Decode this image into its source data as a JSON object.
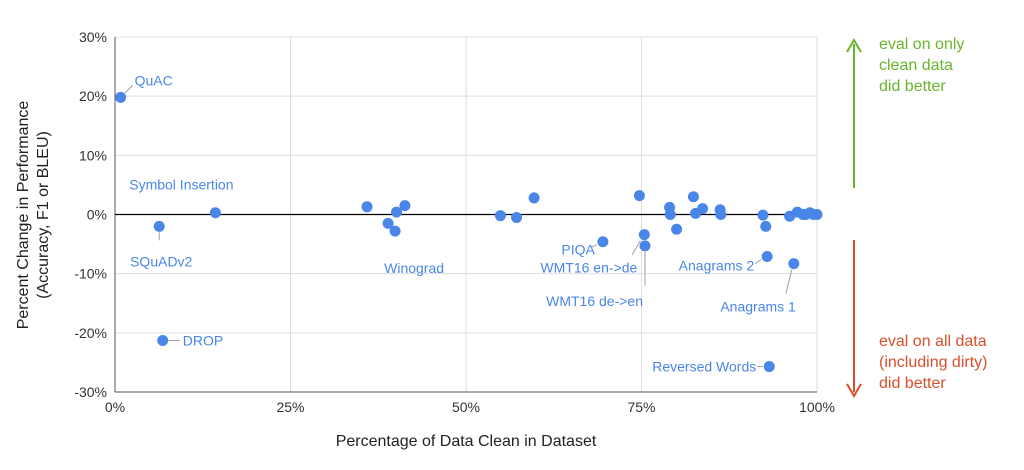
{
  "colors": {
    "point": "#4a86e8",
    "good": "#6ab42d",
    "bad": "#d94f2b",
    "grid": "#dddddd",
    "zero": "#000000"
  },
  "chart_data": {
    "type": "scatter",
    "xlabel": "Percentage of Data Clean in Dataset",
    "ylabel_lines": [
      "Percent Change in Performance",
      "(Accuracy,  F1 or BLEU)"
    ],
    "xlim": [
      0,
      100
    ],
    "ylim": [
      -30,
      30
    ],
    "x_ticks": [
      "0%",
      "25%",
      "50%",
      "75%",
      "100%"
    ],
    "y_ticks": [
      "-30%",
      "-20%",
      "-10%",
      "0%",
      "10%",
      "20%",
      "30%"
    ],
    "grid": true,
    "points": [
      {
        "x": 0.8,
        "y": 19.8
      },
      {
        "x": 6.3,
        "y": -2.0
      },
      {
        "x": 6.8,
        "y": -21.3
      },
      {
        "x": 14.3,
        "y": 0.3
      },
      {
        "x": 35.9,
        "y": 1.3
      },
      {
        "x": 38.9,
        "y": -1.5
      },
      {
        "x": 39.9,
        "y": -2.8
      },
      {
        "x": 40.1,
        "y": 0.4
      },
      {
        "x": 41.3,
        "y": 1.5
      },
      {
        "x": 54.9,
        "y": -0.2
      },
      {
        "x": 57.2,
        "y": -0.5
      },
      {
        "x": 59.7,
        "y": 2.8
      },
      {
        "x": 69.5,
        "y": -4.6
      },
      {
        "x": 74.7,
        "y": 3.2
      },
      {
        "x": 75.4,
        "y": -3.4
      },
      {
        "x": 75.5,
        "y": -5.3
      },
      {
        "x": 79.0,
        "y": 1.2
      },
      {
        "x": 79.1,
        "y": 0.0
      },
      {
        "x": 80.0,
        "y": -2.5
      },
      {
        "x": 82.4,
        "y": 3.0
      },
      {
        "x": 82.7,
        "y": 0.2
      },
      {
        "x": 83.7,
        "y": 1.0
      },
      {
        "x": 86.2,
        "y": 0.8
      },
      {
        "x": 86.3,
        "y": 0.0
      },
      {
        "x": 92.3,
        "y": -0.1
      },
      {
        "x": 92.7,
        "y": -2.0
      },
      {
        "x": 92.9,
        "y": -7.1
      },
      {
        "x": 93.2,
        "y": -25.7
      },
      {
        "x": 96.1,
        "y": -0.3
      },
      {
        "x": 96.7,
        "y": -8.3
      },
      {
        "x": 97.2,
        "y": 0.4
      },
      {
        "x": 98.0,
        "y": 0.0
      },
      {
        "x": 98.4,
        "y": 0.0
      },
      {
        "x": 99.0,
        "y": 0.3
      },
      {
        "x": 99.5,
        "y": 0.0
      },
      {
        "x": 100.0,
        "y": 0.0
      }
    ],
    "annotations": [
      {
        "text": "QuAC",
        "x": 0.8,
        "y": 19.8
      },
      {
        "text": "Symbol Insertion",
        "x": 14.3,
        "y": 0.3
      },
      {
        "text": "SQuADv2",
        "x": 6.3,
        "y": -2.0
      },
      {
        "text": "DROP",
        "x": 6.8,
        "y": -21.3
      },
      {
        "text": "Winograd",
        "x": 39.9,
        "y": -2.8
      },
      {
        "text": "PIQA",
        "x": 69.5,
        "y": -4.6
      },
      {
        "text": "WMT16 en->de",
        "x": 75.4,
        "y": -3.4
      },
      {
        "text": "WMT16 de->en",
        "x": 75.5,
        "y": -5.3
      },
      {
        "text": "Anagrams 2",
        "x": 92.9,
        "y": -7.1
      },
      {
        "text": "Anagrams 1",
        "x": 96.7,
        "y": -8.3
      },
      {
        "text": "Reversed Words",
        "x": 93.2,
        "y": -25.7
      }
    ],
    "side_notes": {
      "top": [
        "eval on only",
        "clean data",
        "did better"
      ],
      "bottom": [
        "eval on all data",
        "(including dirty)",
        "did better"
      ]
    }
  }
}
